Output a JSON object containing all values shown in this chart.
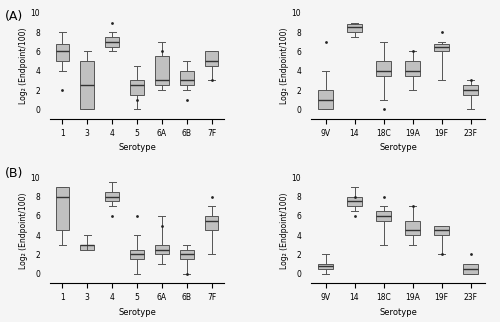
{
  "panel_A_left": {
    "serotypes": [
      "1",
      "3",
      "4",
      "5",
      "6A",
      "6B",
      "7F"
    ],
    "boxes": [
      {
        "q1": 5.0,
        "median": 6.0,
        "q3": 6.8,
        "whislo": 4.0,
        "whishi": 8.0,
        "fliers": [
          2.0
        ]
      },
      {
        "q1": 0.0,
        "median": 2.5,
        "q3": 5.0,
        "whislo": 0.0,
        "whishi": 6.0,
        "fliers": []
      },
      {
        "q1": 6.5,
        "median": 7.0,
        "q3": 7.5,
        "whislo": 6.0,
        "whishi": 8.0,
        "fliers": [
          9.0
        ]
      },
      {
        "q1": 1.5,
        "median": 2.5,
        "q3": 3.0,
        "whislo": 0.0,
        "whishi": 4.5,
        "fliers": [
          1.0
        ]
      },
      {
        "q1": 2.5,
        "median": 3.0,
        "q3": 5.5,
        "whislo": 2.0,
        "whishi": 7.0,
        "fliers": [
          6.0
        ]
      },
      {
        "q1": 2.5,
        "median": 3.0,
        "q3": 4.0,
        "whislo": 2.0,
        "whishi": 5.0,
        "fliers": [
          1.0
        ]
      },
      {
        "q1": 4.5,
        "median": 5.0,
        "q3": 6.0,
        "whislo": 3.0,
        "whishi": 6.0,
        "fliers": [
          3.0
        ]
      }
    ],
    "ylabel": "Log₂ (Endpoint/100)",
    "xlabel": "Serotype",
    "ylim": [
      -1,
      10
    ]
  },
  "panel_A_right": {
    "serotypes": [
      "9V",
      "14",
      "18C",
      "19A",
      "19F",
      "23F"
    ],
    "boxes": [
      {
        "q1": 0.0,
        "median": 1.0,
        "q3": 2.0,
        "whislo": 0.0,
        "whishi": 4.0,
        "fliers": [
          7.0
        ]
      },
      {
        "q1": 8.0,
        "median": 8.5,
        "q3": 8.8,
        "whislo": 7.5,
        "whishi": 9.0,
        "fliers": []
      },
      {
        "q1": 3.5,
        "median": 4.0,
        "q3": 5.0,
        "whislo": 1.0,
        "whishi": 7.0,
        "fliers": [
          0.0
        ]
      },
      {
        "q1": 3.5,
        "median": 4.0,
        "q3": 5.0,
        "whislo": 2.0,
        "whishi": 6.0,
        "fliers": [
          6.0
        ]
      },
      {
        "q1": 6.0,
        "median": 6.5,
        "q3": 6.8,
        "whislo": 3.0,
        "whishi": 7.0,
        "fliers": [
          8.0
        ]
      },
      {
        "q1": 1.5,
        "median": 2.0,
        "q3": 2.5,
        "whislo": 0.0,
        "whishi": 3.0,
        "fliers": [
          3.0
        ]
      }
    ],
    "ylabel": "Log₂ (Endpoint/100)",
    "xlabel": "Serotype",
    "ylim": [
      -1,
      10
    ]
  },
  "panel_B_left": {
    "serotypes": [
      "1",
      "3",
      "4",
      "5",
      "6A",
      "6B",
      "7F"
    ],
    "boxes": [
      {
        "q1": 4.5,
        "median": 8.0,
        "q3": 9.0,
        "whislo": 3.0,
        "whishi": 9.0,
        "fliers": []
      },
      {
        "q1": 2.5,
        "median": 3.0,
        "q3": 3.0,
        "whislo": 3.0,
        "whishi": 4.0,
        "fliers": []
      },
      {
        "q1": 7.5,
        "median": 8.0,
        "q3": 8.5,
        "whislo": 7.0,
        "whishi": 9.5,
        "fliers": [
          6.0
        ]
      },
      {
        "q1": 1.5,
        "median": 2.0,
        "q3": 2.5,
        "whislo": 0.0,
        "whishi": 4.0,
        "fliers": [
          6.0
        ]
      },
      {
        "q1": 2.0,
        "median": 2.5,
        "q3": 3.0,
        "whislo": 1.0,
        "whishi": 6.0,
        "fliers": [
          5.0
        ]
      },
      {
        "q1": 1.5,
        "median": 2.0,
        "q3": 2.5,
        "whislo": 0.0,
        "whishi": 3.0,
        "fliers": [
          0.0
        ]
      },
      {
        "q1": 4.5,
        "median": 5.5,
        "q3": 6.0,
        "whislo": 2.0,
        "whishi": 7.0,
        "fliers": [
          8.0
        ]
      }
    ],
    "ylabel": "Log₂ (Endpoint/100)",
    "xlabel": "Serotype",
    "ylim": [
      -1,
      10
    ]
  },
  "panel_B_right": {
    "serotypes": [
      "9V",
      "14",
      "18C",
      "19A",
      "19F",
      "23F"
    ],
    "boxes": [
      {
        "q1": 0.5,
        "median": 0.8,
        "q3": 1.0,
        "whislo": 0.0,
        "whishi": 2.0,
        "fliers": []
      },
      {
        "q1": 7.0,
        "median": 7.5,
        "q3": 8.0,
        "whislo": 6.5,
        "whishi": 9.0,
        "fliers": [
          6.0,
          8.0
        ]
      },
      {
        "q1": 5.5,
        "median": 6.0,
        "q3": 6.5,
        "whislo": 3.0,
        "whishi": 7.0,
        "fliers": [
          8.0
        ]
      },
      {
        "q1": 4.0,
        "median": 4.5,
        "q3": 5.5,
        "whislo": 3.0,
        "whishi": 7.0,
        "fliers": [
          7.0
        ]
      },
      {
        "q1": 4.0,
        "median": 4.5,
        "q3": 5.0,
        "whislo": 2.0,
        "whishi": 5.0,
        "fliers": [
          2.0
        ]
      },
      {
        "q1": 0.0,
        "median": 0.5,
        "q3": 1.0,
        "whislo": 0.0,
        "whishi": 1.0,
        "fliers": [
          2.0
        ]
      }
    ],
    "ylabel": "Log₂ (Endpoint/100)",
    "xlabel": "Serotype",
    "ylim": [
      -1,
      10
    ]
  },
  "box_color": "#c0c0c0",
  "box_edgecolor": "#555555",
  "median_color": "#333333",
  "flier_color": "#222222",
  "background_color": "#f5f5f5",
  "label_A": "(A)",
  "label_B": "(B)"
}
